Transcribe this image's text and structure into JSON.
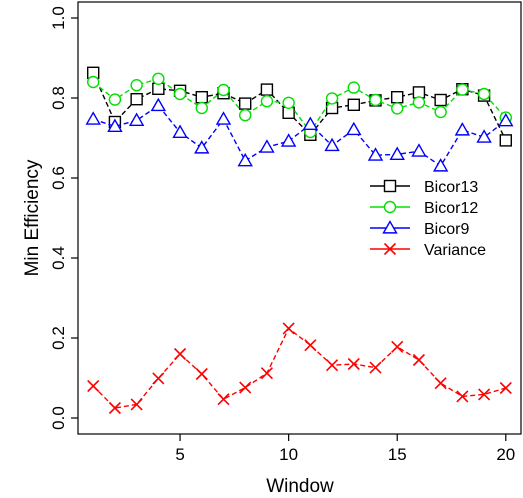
{
  "chart_data": {
    "type": "line",
    "xlabel": "Window",
    "ylabel": "Min Efficiency",
    "xlim": [
      0.3,
      20.7
    ],
    "ylim": [
      -0.04,
      1.04
    ],
    "x_ticks": [
      5,
      10,
      15,
      20
    ],
    "y_ticks": [
      0.0,
      0.2,
      0.4,
      0.6,
      0.8,
      1.0
    ],
    "x_tick_labels": [
      "5",
      "10",
      "15",
      "20"
    ],
    "y_tick_labels": [
      "0.0",
      "0.2",
      "0.4",
      "0.6",
      "0.8",
      "1.0"
    ],
    "grid": false,
    "legend_position": "right",
    "x": [
      1,
      2,
      3,
      4,
      5,
      6,
      7,
      8,
      9,
      10,
      11,
      12,
      13,
      14,
      15,
      16,
      17,
      18,
      19,
      20
    ],
    "series": [
      {
        "name": "Bicor13",
        "color": "#000000",
        "marker": "square",
        "values": [
          0.863,
          0.74,
          0.797,
          0.823,
          0.818,
          0.802,
          0.812,
          0.786,
          0.821,
          0.763,
          0.708,
          0.775,
          0.783,
          0.794,
          0.802,
          0.814,
          0.795,
          0.822,
          0.806,
          0.694
        ]
      },
      {
        "name": "Bicor12",
        "color": "#00e000",
        "marker": "circle",
        "values": [
          0.84,
          0.796,
          0.832,
          0.848,
          0.81,
          0.775,
          0.82,
          0.757,
          0.792,
          0.788,
          0.715,
          0.799,
          0.826,
          0.795,
          0.774,
          0.789,
          0.765,
          0.821,
          0.81,
          0.751
        ]
      },
      {
        "name": "Bicor9",
        "color": "#0000ff",
        "marker": "triangle",
        "values": [
          0.747,
          0.729,
          0.744,
          0.781,
          0.714,
          0.675,
          0.747,
          0.643,
          0.677,
          0.692,
          0.734,
          0.681,
          0.721,
          0.657,
          0.659,
          0.667,
          0.63,
          0.72,
          0.702,
          0.743
        ]
      },
      {
        "name": "Variance",
        "color": "#ff0000",
        "marker": "x",
        "values": [
          0.08,
          0.025,
          0.034,
          0.099,
          0.16,
          0.11,
          0.047,
          0.076,
          0.112,
          0.224,
          0.182,
          0.132,
          0.135,
          0.126,
          0.178,
          0.145,
          0.087,
          0.054,
          0.059,
          0.075
        ]
      }
    ]
  }
}
